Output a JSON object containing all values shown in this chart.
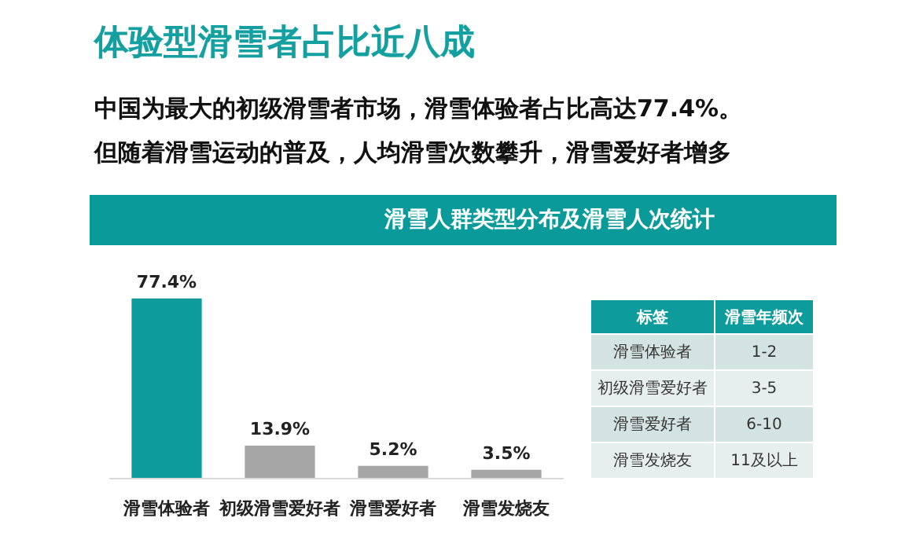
{
  "chart_data": [
    {
      "type": "bar",
      "title": "体验型滑雪者占比近八成",
      "subtitle": "滑雪人群类型分布及滑雪人次统计",
      "annotations": [
        "中国为最大的初级滑雪者市场，滑雪体验者占比高达77.4%。",
        "但随着滑雪运动的普及，人均滑雪次数攀升，滑雪爱好者增多"
      ],
      "categories": [
        "滑雪体验者",
        "初级滑雪爱好者",
        "滑雪爱好者",
        "滑雪发烧友"
      ],
      "values": [
        77.4,
        13.9,
        5.2,
        3.5
      ],
      "colors": [
        "#0e9b9b",
        "#a6a6a6",
        "#a6a6a6",
        "#a6a6a6"
      ],
      "value_labels": [
        "77.4%",
        "13.9%",
        "5.2%",
        "3.5%"
      ]
    },
    {
      "type": "other",
      "annotations": [
        "标签",
        "滑雪年频次",
        "滑雪体验者",
        "1-2",
        "初级滑雪爱好者",
        "3-5",
        "滑雪爱好者",
        "6-10",
        "滑雪发烧友",
        "11及以上"
      ]
    }
  ]
}
